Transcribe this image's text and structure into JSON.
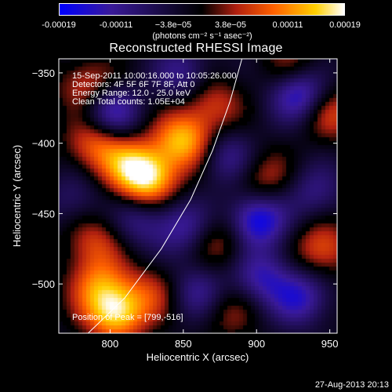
{
  "colorbar": {
    "ticks": [
      "-0.00019",
      "-0.00011",
      "−3.8e−05",
      "3.8e−05",
      "0.00011",
      "0.00019"
    ],
    "tick_values": [
      -0.00019,
      -0.00011,
      -3.8e-05,
      3.8e-05,
      0.00011,
      0.00019
    ],
    "units": "(photons cm⁻² s⁻¹ asec⁻²)",
    "range": [
      -0.00019,
      0.00019
    ],
    "colormap": [
      "#0000ff",
      "#3a1a9a",
      "#000000",
      "#b02010",
      "#ff6000",
      "#ffd000",
      "#ffffff"
    ]
  },
  "chart_data": {
    "type": "heatmap",
    "title": "Reconstructed RHESSI Image",
    "xlabel": "Heliocentric X (arcsec)",
    "ylabel": "Heliocentric Y (arcsec)",
    "xlim": [
      765,
      955
    ],
    "ylim": [
      -535,
      -340
    ],
    "xticks": [
      800,
      850,
      900,
      950
    ],
    "yticks": [
      -350,
      -400,
      -450,
      -500
    ],
    "annotations": [
      "15-Sep-2011 10:00:16.000 to 10:05:26.000",
      "Detectors: 4F 5F 6F 7F 8F, Att 0",
      "Energy Range: 12.0 - 25.0 keV",
      "Clean     Total counts: 1.05E+04"
    ],
    "peak_label": "Position of Peak = [799,-516]",
    "peak": [
      799,
      -516
    ],
    "limb_curve": [
      [
        785,
        -535
      ],
      [
        810,
        -510
      ],
      [
        835,
        -475
      ],
      [
        855,
        -440
      ],
      [
        870,
        -405
      ],
      [
        882,
        -370
      ],
      [
        890,
        -340
      ]
    ],
    "blobs": [
      {
        "x": 804,
        "y": -520,
        "level": 1.0
      },
      {
        "x": 790,
        "y": -500,
        "level": 0.55
      },
      {
        "x": 826,
        "y": -425,
        "level": 0.95
      },
      {
        "x": 812,
        "y": -415,
        "level": 0.55
      },
      {
        "x": 850,
        "y": -398,
        "level": 0.85
      },
      {
        "x": 790,
        "y": -400,
        "level": 0.6
      },
      {
        "x": 785,
        "y": -360,
        "level": 0.5
      },
      {
        "x": 870,
        "y": -372,
        "level": 0.45
      },
      {
        "x": 950,
        "y": -378,
        "level": 0.5
      },
      {
        "x": 945,
        "y": -475,
        "level": 0.55
      },
      {
        "x": 875,
        "y": -470,
        "level": 0.4
      },
      {
        "x": 790,
        "y": -470,
        "level": 0.45
      },
      {
        "x": 905,
        "y": -425,
        "level": 0.4
      },
      {
        "x": 830,
        "y": -505,
        "level": 0.4
      },
      {
        "x": 880,
        "y": -520,
        "level": 0.3
      },
      {
        "x": 925,
        "y": -345,
        "level": 0.35
      },
      {
        "x": 800,
        "y": -378,
        "level": -0.7
      },
      {
        "x": 930,
        "y": -365,
        "level": -0.8
      },
      {
        "x": 900,
        "y": -455,
        "level": -0.85
      },
      {
        "x": 930,
        "y": -510,
        "level": -0.6
      },
      {
        "x": 850,
        "y": -460,
        "level": -0.5
      },
      {
        "x": 820,
        "y": -455,
        "level": -0.4
      },
      {
        "x": 880,
        "y": -410,
        "level": -0.45
      },
      {
        "x": 850,
        "y": -350,
        "level": -0.45
      },
      {
        "x": 860,
        "y": -505,
        "level": -0.5
      },
      {
        "x": 905,
        "y": -495,
        "level": -0.55
      },
      {
        "x": 940,
        "y": -435,
        "level": -0.4
      },
      {
        "x": 775,
        "y": -440,
        "level": -0.3
      }
    ]
  },
  "footer": {
    "date": "27-Aug-2013 20:13"
  }
}
